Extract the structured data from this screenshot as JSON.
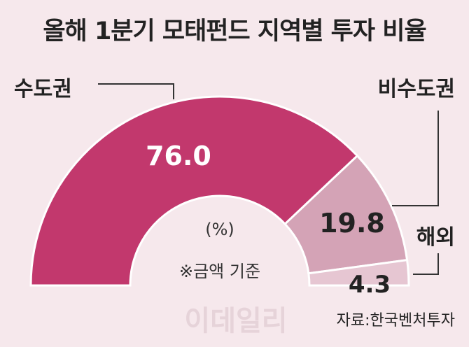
{
  "chart_data": {
    "type": "pie",
    "title": "올해 1분기 모태펀드 지역별 투자 비율",
    "unit": "(%)",
    "note": "※금액 기준",
    "source": "자료:한국벤처투자",
    "watermark": "이데일리",
    "series": [
      {
        "name": "수도권",
        "value": 76.0,
        "label": "76.0",
        "color": "#c2386d",
        "text_color": "#ffffff"
      },
      {
        "name": "비수도권",
        "value": 19.8,
        "label": "19.8",
        "color": "#d4a3b6",
        "text_color": "#222222"
      },
      {
        "name": "해외",
        "value": 4.3,
        "label": "4.3",
        "color": "#e6c6d2",
        "text_color": "#222222"
      }
    ]
  }
}
